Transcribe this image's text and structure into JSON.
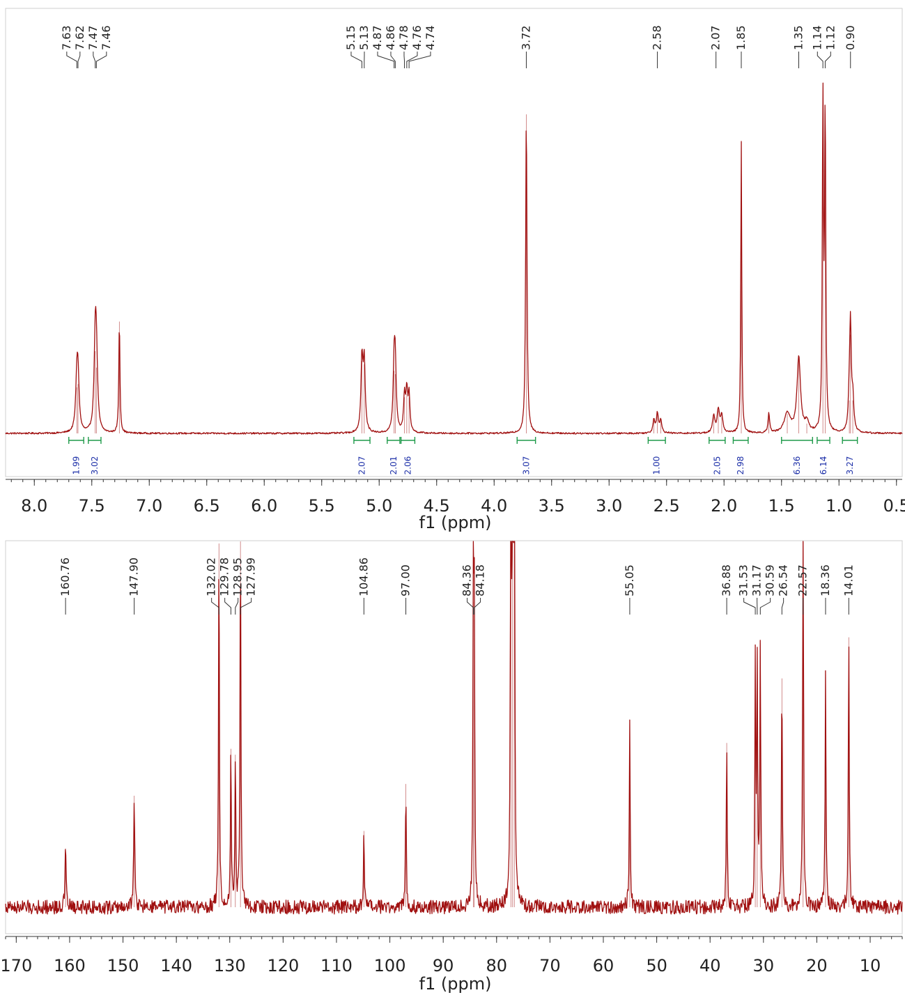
{
  "chart_data": [
    {
      "type": "line",
      "title": "",
      "xlabel": "f1 (ppm)",
      "ylabel": "",
      "x_reversed": true,
      "xlim": [
        8.25,
        0.45
      ],
      "xticks": [
        "8.0",
        "7.5",
        "7.0",
        "6.5",
        "6.0",
        "5.5",
        "5.0",
        "4.5",
        "4.0",
        "3.5",
        "3.0",
        "2.5",
        "2.0",
        "1.5",
        "1.0",
        "0.5"
      ],
      "baseline_noise": 0.0025,
      "peaks": [
        {
          "x": 7.63,
          "h": 0.14,
          "w": 0.012
        },
        {
          "x": 7.62,
          "h": 0.15,
          "w": 0.012
        },
        {
          "x": 7.47,
          "h": 0.25,
          "w": 0.012
        },
        {
          "x": 7.46,
          "h": 0.2,
          "w": 0.012
        },
        {
          "x": 7.26,
          "h": 0.34,
          "w": 0.006
        },
        {
          "x": 5.15,
          "h": 0.22,
          "w": 0.01
        },
        {
          "x": 5.13,
          "h": 0.21,
          "w": 0.01
        },
        {
          "x": 4.87,
          "h": 0.19,
          "w": 0.01
        },
        {
          "x": 4.86,
          "h": 0.18,
          "w": 0.01
        },
        {
          "x": 4.78,
          "h": 0.11,
          "w": 0.009
        },
        {
          "x": 4.76,
          "h": 0.12,
          "w": 0.009
        },
        {
          "x": 4.74,
          "h": 0.11,
          "w": 0.009
        },
        {
          "x": 3.72,
          "h": 0.97,
          "w": 0.007
        },
        {
          "x": 2.61,
          "h": 0.04,
          "w": 0.01
        },
        {
          "x": 2.58,
          "h": 0.06,
          "w": 0.01
        },
        {
          "x": 2.55,
          "h": 0.04,
          "w": 0.01
        },
        {
          "x": 2.09,
          "h": 0.05,
          "w": 0.012
        },
        {
          "x": 2.05,
          "h": 0.07,
          "w": 0.012
        },
        {
          "x": 2.02,
          "h": 0.05,
          "w": 0.012
        },
        {
          "x": 1.85,
          "h": 0.89,
          "w": 0.005
        },
        {
          "x": 1.61,
          "h": 0.06,
          "w": 0.008
        },
        {
          "x": 1.45,
          "h": 0.06,
          "w": 0.03
        },
        {
          "x": 1.35,
          "h": 0.23,
          "w": 0.018
        },
        {
          "x": 1.28,
          "h": 0.03,
          "w": 0.02
        },
        {
          "x": 1.14,
          "h": 1.0,
          "w": 0.006
        },
        {
          "x": 1.12,
          "h": 0.97,
          "w": 0.006
        },
        {
          "x": 0.91,
          "h": 0.1,
          "w": 0.01
        },
        {
          "x": 0.9,
          "h": 0.3,
          "w": 0.008
        },
        {
          "x": 0.88,
          "h": 0.1,
          "w": 0.01
        }
      ],
      "peak_labels": [
        "7.63",
        "7.62",
        "7.47",
        "7.46",
        "5.15",
        "5.13",
        "4.87",
        "4.86",
        "4.78",
        "4.76",
        "4.74",
        "3.72",
        "2.58",
        "2.07",
        "1.85",
        "1.35",
        "1.14",
        "1.12",
        "0.90"
      ],
      "peak_label_positions": [
        7.63,
        7.62,
        7.47,
        7.46,
        5.15,
        5.13,
        4.87,
        4.86,
        4.78,
        4.76,
        4.74,
        3.72,
        2.58,
        2.07,
        1.85,
        1.35,
        1.14,
        1.12,
        0.9
      ],
      "integrals": [
        {
          "from": 7.7,
          "to": 7.57,
          "value": "1.99"
        },
        {
          "from": 7.53,
          "to": 7.42,
          "value": "3.02"
        },
        {
          "from": 5.22,
          "to": 5.08,
          "value": "2.07"
        },
        {
          "from": 4.93,
          "to": 4.82,
          "value": "2.01"
        },
        {
          "from": 4.81,
          "to": 4.69,
          "value": "2.06"
        },
        {
          "from": 3.8,
          "to": 3.64,
          "value": "3.07"
        },
        {
          "from": 2.66,
          "to": 2.51,
          "value": "1.00"
        },
        {
          "from": 2.13,
          "to": 1.99,
          "value": "2.05"
        },
        {
          "from": 1.92,
          "to": 1.79,
          "value": "2.98"
        },
        {
          "from": 1.5,
          "to": 1.23,
          "value": "6.36"
        },
        {
          "from": 1.19,
          "to": 1.08,
          "value": "6.14"
        },
        {
          "from": 0.97,
          "to": 0.84,
          "value": "3.27"
        }
      ]
    },
    {
      "type": "line",
      "title": "",
      "xlabel": "f1 (ppm)",
      "ylabel": "",
      "x_reversed": true,
      "xlim": [
        172,
        4
      ],
      "xticks": [
        "170",
        "160",
        "150",
        "140",
        "130",
        "120",
        "110",
        "100",
        "90",
        "80",
        "70",
        "60",
        "50",
        "40",
        "30",
        "20",
        "10"
      ],
      "baseline_noise": 0.012,
      "peaks": [
        {
          "x": 160.76,
          "h": 0.1,
          "w": 0.12
        },
        {
          "x": 147.9,
          "h": 0.19,
          "w": 0.12
        },
        {
          "x": 132.02,
          "h": 0.62,
          "w": 0.1
        },
        {
          "x": 129.78,
          "h": 0.27,
          "w": 0.1
        },
        {
          "x": 128.95,
          "h": 0.26,
          "w": 0.1
        },
        {
          "x": 127.99,
          "h": 0.64,
          "w": 0.1
        },
        {
          "x": 104.86,
          "h": 0.13,
          "w": 0.1
        },
        {
          "x": 97.0,
          "h": 0.21,
          "w": 0.1
        },
        {
          "x": 84.36,
          "h": 0.52,
          "w": 0.1
        },
        {
          "x": 84.18,
          "h": 0.49,
          "w": 0.1
        },
        {
          "x": 77.32,
          "h": 1.3,
          "w": 0.08
        },
        {
          "x": 77.0,
          "h": 1.3,
          "w": 0.08
        },
        {
          "x": 76.68,
          "h": 1.3,
          "w": 0.08
        },
        {
          "x": 55.05,
          "h": 0.31,
          "w": 0.1
        },
        {
          "x": 36.88,
          "h": 0.28,
          "w": 0.1
        },
        {
          "x": 31.53,
          "h": 0.42,
          "w": 0.1
        },
        {
          "x": 31.17,
          "h": 0.4,
          "w": 0.1
        },
        {
          "x": 30.59,
          "h": 0.45,
          "w": 0.1
        },
        {
          "x": 26.54,
          "h": 0.39,
          "w": 0.1
        },
        {
          "x": 22.57,
          "h": 0.71,
          "w": 0.1
        },
        {
          "x": 18.36,
          "h": 0.4,
          "w": 0.1
        },
        {
          "x": 14.01,
          "h": 0.46,
          "w": 0.1
        }
      ],
      "peak_labels": [
        "160.76",
        "147.90",
        "132.02",
        "129.78",
        "128.95",
        "127.99",
        "104.86",
        "97.00",
        "84.36",
        "84.18",
        "55.05",
        "36.88",
        "31.53",
        "31.17",
        "30.59",
        "26.54",
        "22.57",
        "18.36",
        "14.01"
      ],
      "peak_label_positions": [
        160.76,
        147.9,
        132.02,
        129.78,
        128.95,
        127.99,
        104.86,
        97.0,
        84.36,
        84.18,
        55.05,
        36.88,
        31.53,
        31.17,
        30.59,
        26.54,
        22.57,
        18.36,
        14.01
      ],
      "integrals": []
    }
  ]
}
